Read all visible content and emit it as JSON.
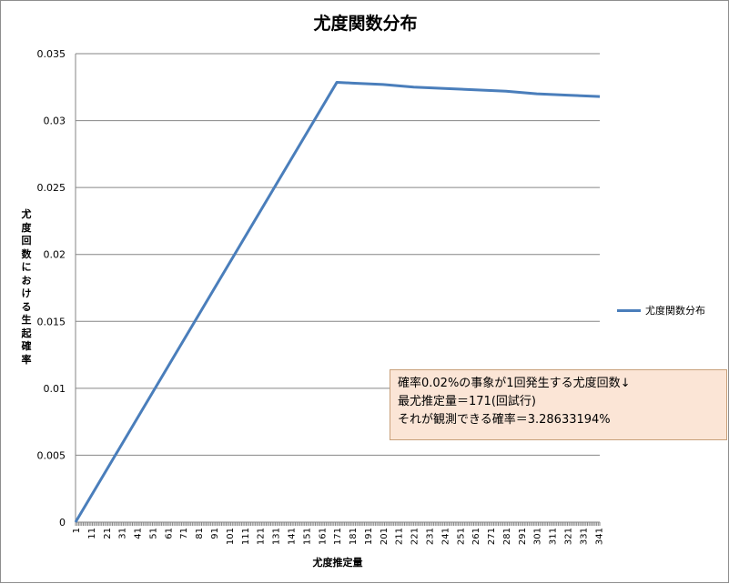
{
  "chart_data": {
    "type": "line",
    "title": "尤度関数分布",
    "xlabel": "尤度推定量",
    "ylabel": "尤度回数における生起確率",
    "ylim": [
      0,
      0.035
    ],
    "yticks": [
      "0",
      "0.005",
      "0.01",
      "0.015",
      "0.02",
      "0.025",
      "0.03",
      "0.035"
    ],
    "xticks": [
      "1",
      "11",
      "21",
      "31",
      "41",
      "51",
      "61",
      "71",
      "81",
      "91",
      "101",
      "111",
      "121",
      "131",
      "141",
      "151",
      "161",
      "171",
      "181",
      "191",
      "201",
      "211",
      "221",
      "231",
      "241",
      "251",
      "261",
      "271",
      "281",
      "291",
      "301",
      "311",
      "321",
      "331",
      "341"
    ],
    "x_range": [
      1,
      342
    ],
    "grid": true,
    "legend_position": "right",
    "series": [
      {
        "name": "尤度関数分布",
        "color": "#4a7ebb",
        "x": [
          1,
          171,
          181,
          201,
          221,
          241,
          261,
          281,
          301,
          321,
          342
        ],
        "values": [
          0,
          0.0328633,
          0.0328,
          0.0327,
          0.0325,
          0.0324,
          0.0323,
          0.0322,
          0.032,
          0.0319,
          0.0318
        ]
      }
    ],
    "annotation": {
      "lines": [
        "確率0.02%の事象が1回発生する尤度回数↓",
        "最尤推定量＝171(回試行)",
        "それが観測できる確率＝3.28633194%"
      ]
    }
  }
}
